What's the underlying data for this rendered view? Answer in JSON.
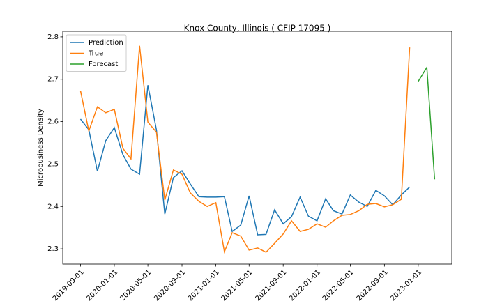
{
  "chart_data": {
    "type": "line",
    "title": "Knox County, Illinois ( CFIP 17095 )",
    "y_label": "Microbusiness Density",
    "x": [
      "2019-09-01",
      "2019-10-01",
      "2019-11-01",
      "2019-12-01",
      "2020-01-01",
      "2020-02-01",
      "2020-03-01",
      "2020-04-01",
      "2020-05-01",
      "2020-06-01",
      "2020-07-01",
      "2020-08-01",
      "2020-09-01",
      "2020-10-01",
      "2020-11-01",
      "2020-12-01",
      "2021-01-01",
      "2021-02-01",
      "2021-03-01",
      "2021-04-01",
      "2021-05-01",
      "2021-06-01",
      "2021-07-01",
      "2021-08-01",
      "2021-09-01",
      "2021-10-01",
      "2021-11-01",
      "2021-12-01",
      "2022-01-01",
      "2022-02-01",
      "2022-03-01",
      "2022-04-01",
      "2022-05-01",
      "2022-06-01",
      "2022-07-01",
      "2022-08-01",
      "2022-09-01",
      "2022-10-01",
      "2022-11-01",
      "2022-12-01"
    ],
    "series": [
      {
        "name": "Prediction",
        "color": "#1f77b4",
        "values": [
          2.606,
          2.581,
          2.483,
          2.555,
          2.586,
          2.522,
          2.488,
          2.476,
          2.686,
          2.58,
          2.382,
          2.468,
          2.484,
          2.453,
          2.423,
          2.422,
          2.422,
          2.423,
          2.341,
          2.356,
          2.425,
          2.333,
          2.334,
          2.392,
          2.359,
          2.376,
          2.422,
          2.377,
          2.366,
          2.418,
          2.39,
          2.382,
          2.427,
          2.41,
          2.4,
          2.438,
          2.425,
          2.404,
          2.427,
          2.446
        ]
      },
      {
        "name": "True",
        "color": "#ff7f0e",
        "values": [
          2.673,
          2.578,
          2.635,
          2.621,
          2.629,
          2.537,
          2.512,
          2.779,
          2.599,
          2.575,
          2.415,
          2.486,
          2.476,
          2.432,
          2.412,
          2.4,
          2.409,
          2.293,
          2.338,
          2.33,
          2.297,
          2.302,
          2.292,
          2.313,
          2.335,
          2.366,
          2.341,
          2.346,
          2.359,
          2.351,
          2.366,
          2.379,
          2.381,
          2.39,
          2.405,
          2.407,
          2.399,
          2.404,
          2.417,
          2.775
        ]
      },
      {
        "name": "Forecast",
        "color": "#2ca02c",
        "x": [
          "2023-01-01",
          "2023-02-01",
          "2023-03-01"
        ],
        "values": [
          2.695,
          2.728,
          2.464
        ]
      }
    ],
    "xlim": [
      "2019-06-29",
      "2023-05-02"
    ],
    "xticks": [
      "2019-09-01",
      "2020-01-01",
      "2020-05-01",
      "2020-09-01",
      "2021-01-01",
      "2021-05-01",
      "2021-09-01",
      "2022-01-01",
      "2022-05-01",
      "2022-09-01",
      "2023-01-01"
    ],
    "ylim": [
      2.264,
      2.813
    ],
    "yticks": [
      2.3,
      2.4,
      2.5,
      2.6,
      2.7,
      2.8
    ],
    "grid": false,
    "legend": "upper-left"
  }
}
